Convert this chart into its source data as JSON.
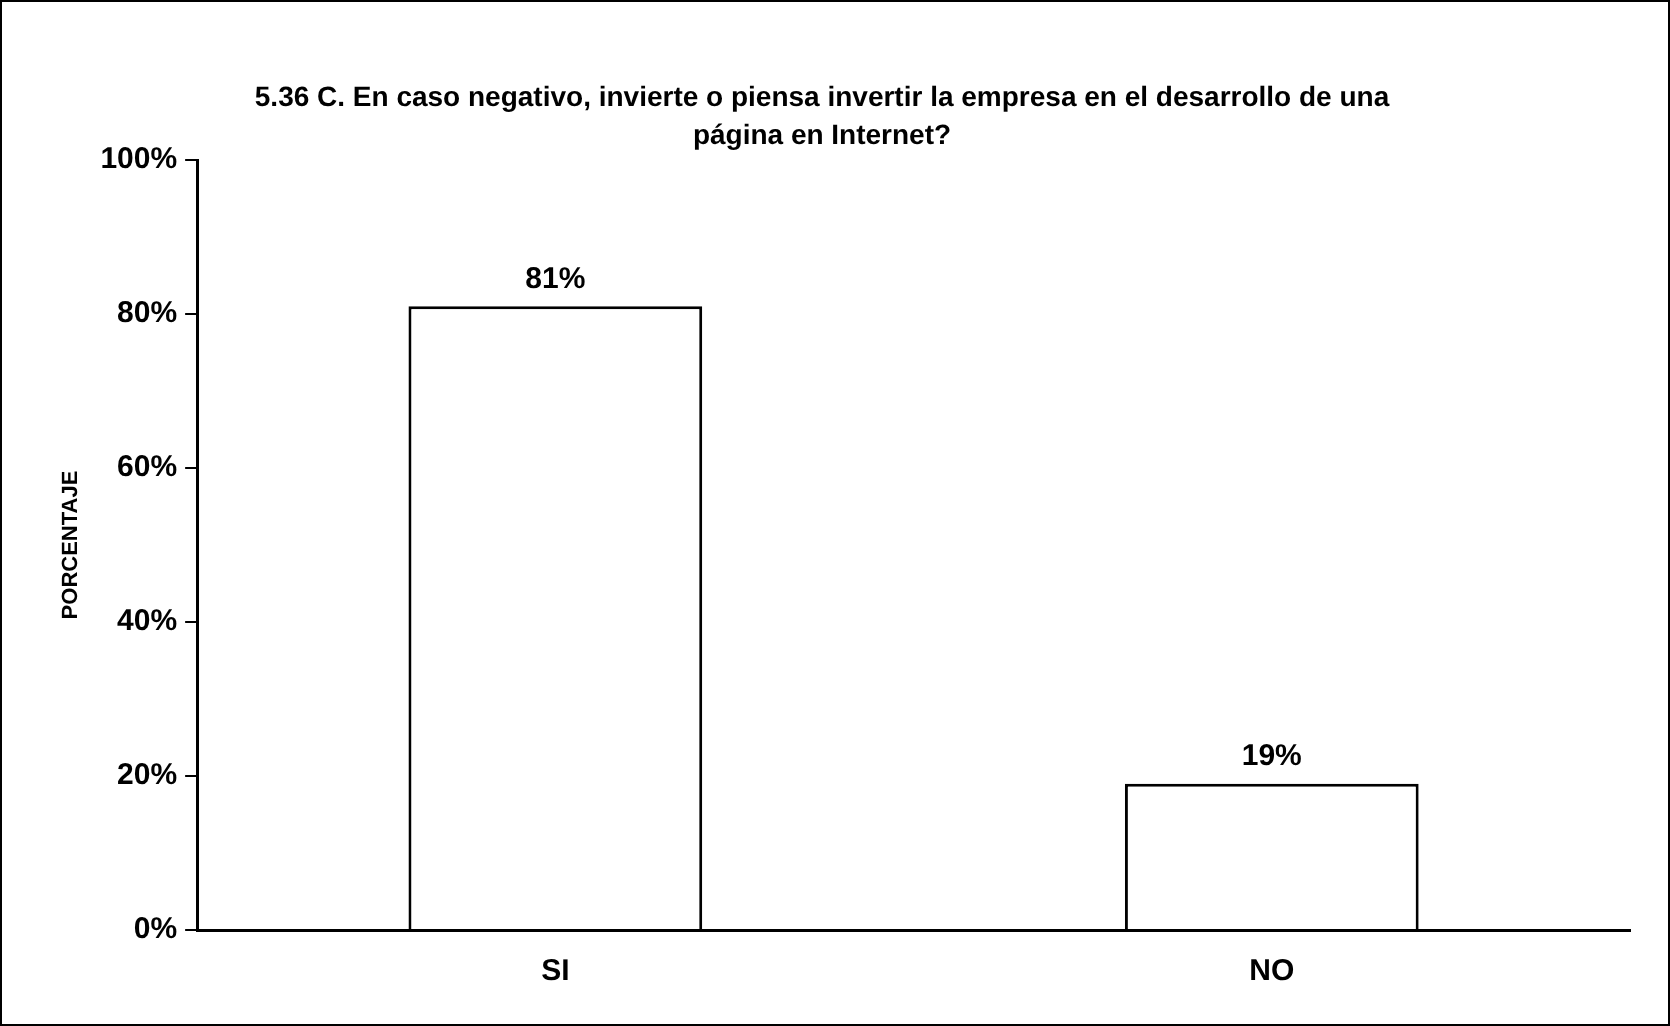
{
  "chart_data": {
    "type": "bar",
    "title": "5.36 C. En caso negativo, invierte o piensa invertir la empresa en el desarrollo de una página en Internet?",
    "ylabel": "PORCENTAJE",
    "categories": [
      "SI",
      "NO"
    ],
    "values": [
      81,
      19
    ],
    "value_labels": [
      "81%",
      "19%"
    ],
    "color": "#ffffff",
    "ylim": [
      0,
      100
    ],
    "yticks": [
      {
        "value": 0,
        "label": "0%"
      },
      {
        "value": 20,
        "label": "20%"
      },
      {
        "value": 40,
        "label": "40%"
      },
      {
        "value": 60,
        "label": "60%"
      },
      {
        "value": 80,
        "label": "80%"
      },
      {
        "value": 100,
        "label": "100%"
      }
    ],
    "grid": false,
    "legend": false
  }
}
